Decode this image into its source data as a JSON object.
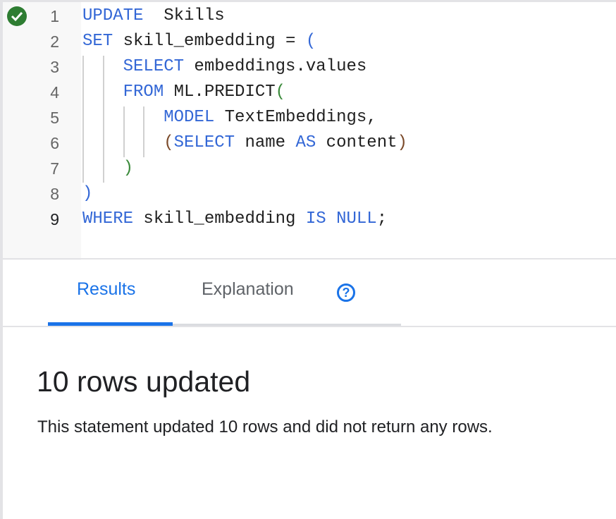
{
  "editor": {
    "status_icon": "check-circle-icon",
    "status_color": "#2e7d32",
    "active_line": 9,
    "lines": [
      {
        "num": "1",
        "tokens": [
          [
            "kw",
            "UPDATE"
          ],
          [
            "",
            "  Skills"
          ]
        ]
      },
      {
        "num": "2",
        "tokens": [
          [
            "kw",
            "SET"
          ],
          [
            "",
            " skill_embedding = "
          ],
          [
            "kw",
            "("
          ]
        ]
      },
      {
        "num": "3",
        "tokens": [
          [
            "",
            "    "
          ],
          [
            "kw",
            "SELECT"
          ],
          [
            "",
            " embeddings.values"
          ]
        ]
      },
      {
        "num": "4",
        "tokens": [
          [
            "",
            "    "
          ],
          [
            "kw",
            "FROM"
          ],
          [
            "",
            " ML.PREDICT"
          ],
          [
            "pg",
            "("
          ]
        ]
      },
      {
        "num": "5",
        "tokens": [
          [
            "",
            "        "
          ],
          [
            "kw",
            "MODEL"
          ],
          [
            "",
            " TextEmbeddings,"
          ]
        ]
      },
      {
        "num": "6",
        "tokens": [
          [
            "",
            "        "
          ],
          [
            "pb",
            "("
          ],
          [
            "kw",
            "SELECT"
          ],
          [
            "",
            " name "
          ],
          [
            "kw",
            "AS"
          ],
          [
            "",
            " content"
          ],
          [
            "pb",
            ")"
          ]
        ]
      },
      {
        "num": "7",
        "tokens": [
          [
            "",
            "    "
          ],
          [
            "pg",
            ")"
          ]
        ]
      },
      {
        "num": "8",
        "tokens": [
          [
            "kw",
            ")"
          ]
        ]
      },
      {
        "num": "9",
        "tokens": [
          [
            "kw",
            "WHERE"
          ],
          [
            "",
            " skill_embedding "
          ],
          [
            "kw",
            "IS"
          ],
          [
            "",
            " "
          ],
          [
            "kw",
            "NULL"
          ],
          [
            "",
            ";"
          ]
        ]
      }
    ]
  },
  "tabs": {
    "results": "Results",
    "explanation": "Explanation",
    "help_icon": "help-circle-icon",
    "help_glyph": "?",
    "active": "Results",
    "accent": "#1a73e8"
  },
  "result": {
    "title": "10 rows updated",
    "description": "This statement updated 10 rows and did not return any rows."
  }
}
